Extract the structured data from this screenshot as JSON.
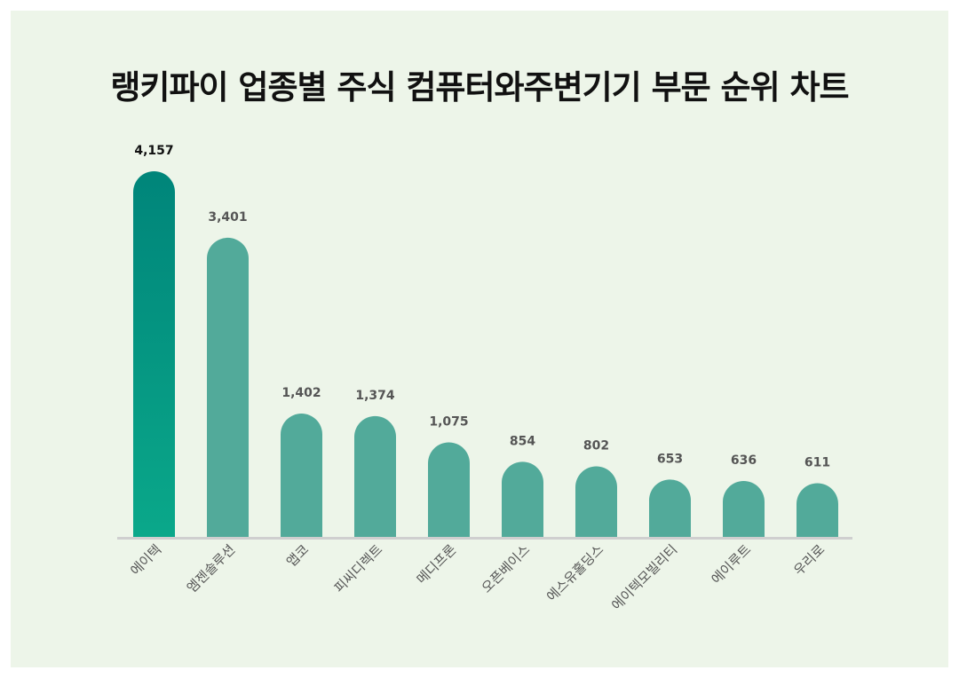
{
  "chart_data": {
    "type": "bar",
    "title": "랭키파이 업종별 주식 컴퓨터와주변기기 부문 순위 차트",
    "categories": [
      "에이텍",
      "엠젠솔루션",
      "앱코",
      "피씨디렉트",
      "메디프론",
      "오픈베이스",
      "에스유홀딩스",
      "에이텍모빌리티",
      "에이루트",
      "우리로"
    ],
    "values": [
      4157,
      3401,
      1402,
      1374,
      1075,
      854,
      802,
      653,
      636,
      611
    ],
    "value_labels": [
      "4,157",
      "3,401",
      "1,402",
      "1,374",
      "1,075",
      "854",
      "802",
      "653",
      "636",
      "611"
    ],
    "xlabel": "",
    "ylabel": "",
    "ylim": [
      0,
      4157
    ],
    "grid": false,
    "colors": {
      "highlight_top": "#00857a",
      "highlight_bottom": "#0aa88a",
      "bar": "#52aa9a",
      "baseline": "#cfcfcf",
      "background": "#edf5e9",
      "first_label": "#111111",
      "label": "#555555",
      "category": "#555555"
    }
  }
}
